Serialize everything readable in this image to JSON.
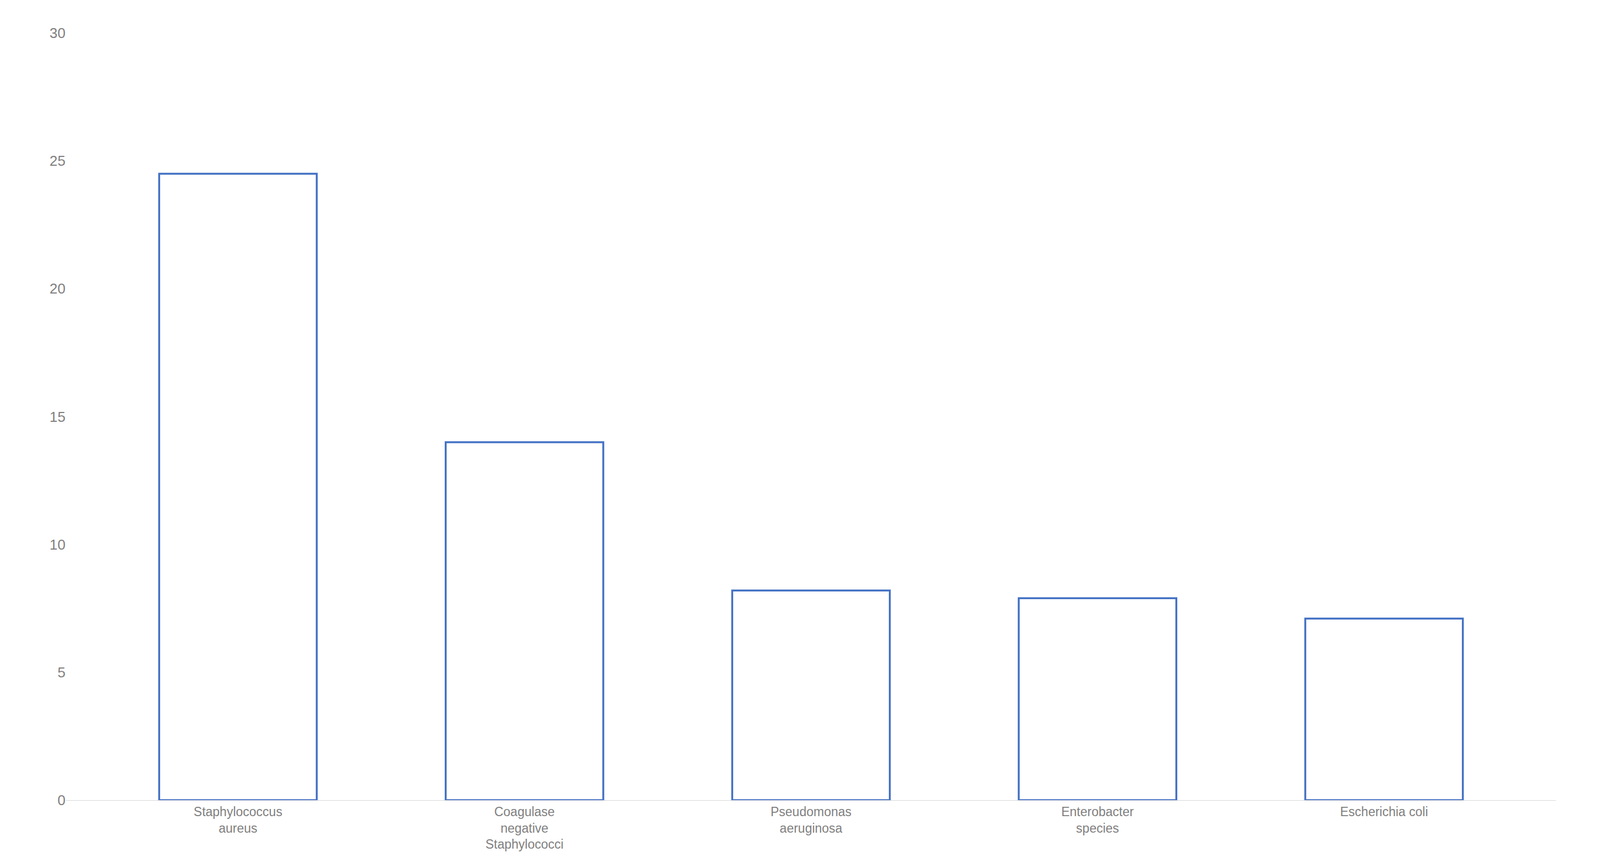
{
  "chart_data": {
    "type": "bar",
    "categories": [
      "Staphylococcus\naureus",
      "Coagulase\nnegative\nStaphylococci",
      "Pseudomonas\naeruginosa",
      "Enterobacter\nspecies",
      "Escherichia coli"
    ],
    "values": [
      24.5,
      14.0,
      8.2,
      7.9,
      7.1
    ],
    "color": "#4472C4",
    "ylim": [
      0,
      30
    ],
    "yticks": [
      0,
      5,
      10,
      15,
      20,
      25,
      30
    ],
    "grid": false
  }
}
